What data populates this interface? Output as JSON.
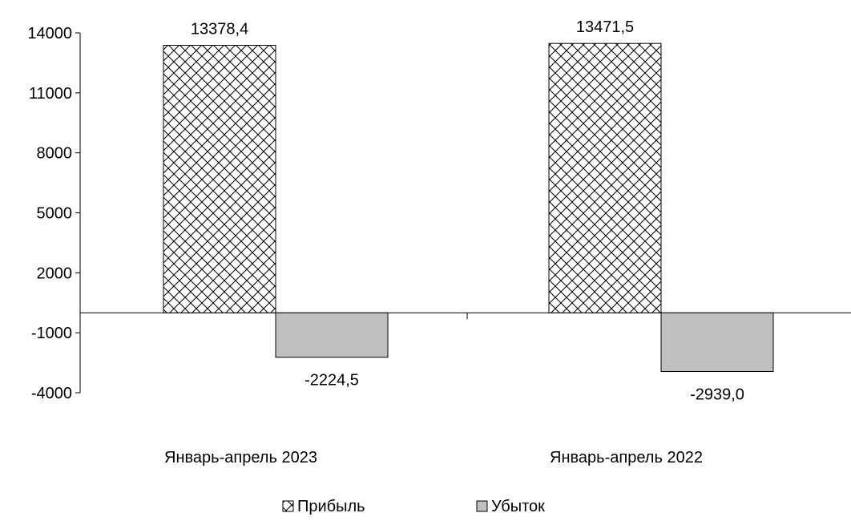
{
  "chart_data": {
    "type": "bar",
    "categories": [
      "Январь-апрель 2023",
      "Январь-апрель 2022"
    ],
    "series": [
      {
        "name": "Прибыль",
        "values": [
          13378.4,
          13471.5
        ],
        "labels": [
          "13378,4",
          "13471,5"
        ],
        "pattern": "crosshatch",
        "color": "#ffffff"
      },
      {
        "name": "Убыток",
        "values": [
          -2224.5,
          -2939.0
        ],
        "labels": [
          "-2224,5",
          "-2939,0"
        ],
        "pattern": "solid",
        "color": "#c0c0c0"
      }
    ],
    "yticks": [
      14000,
      11000,
      8000,
      5000,
      2000,
      -1000,
      -4000
    ],
    "ylim": [
      -4000,
      14000
    ],
    "grid": false,
    "legend_position": "bottom"
  }
}
